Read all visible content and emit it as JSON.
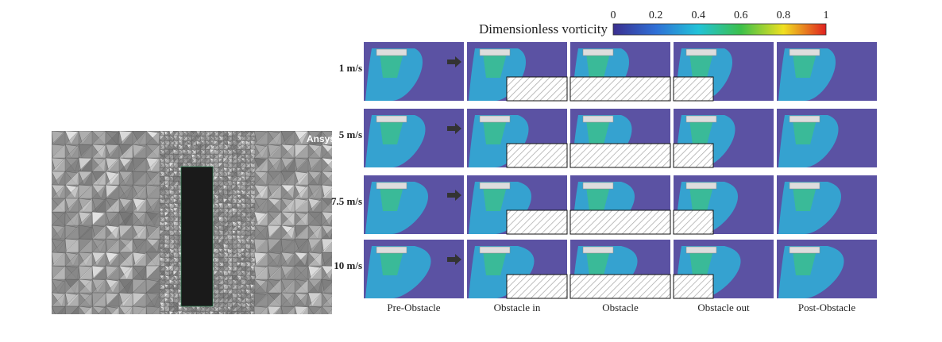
{
  "mesh": {
    "watermark": "Ansys"
  },
  "colorbar": {
    "title": "Dimensionless vorticity",
    "ticks": [
      "0",
      "0.2",
      "0.4",
      "0.6",
      "0.8",
      "1"
    ]
  },
  "rows": [
    "1 m/s",
    "5 m/s",
    "7.5 m/s",
    "10 m/s"
  ],
  "columns": [
    "Pre-Obstacle",
    "Obstacle in",
    "Obstacle",
    "Obstacle out",
    "Post-Obstacle"
  ]
}
